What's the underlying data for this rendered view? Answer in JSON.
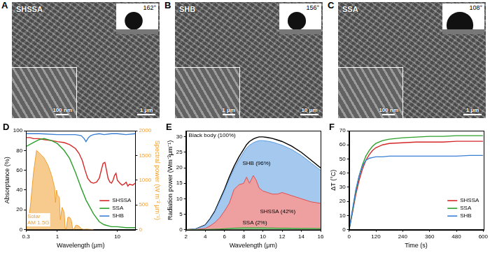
{
  "images": [
    {
      "letter": "A",
      "label": "SHSSA",
      "contact_angle": "162°",
      "inset_scale": "100 nm",
      "scale": "1 μm"
    },
    {
      "letter": "B",
      "label": "SHB",
      "contact_angle": "156°",
      "inset_scale": "1 μm",
      "scale": "10 μm"
    },
    {
      "letter": "C",
      "label": "SSA",
      "contact_angle": "108°",
      "inset_scale": "100 nm",
      "scale": "1 μm"
    }
  ],
  "chart_data": [
    {
      "letter": "D",
      "type": "line",
      "x_label": "Wavelength (μm)",
      "y_label": "Absorptance (%)",
      "y2_label": "Spectral power (W m⁻² μm⁻¹)",
      "log": "x",
      "grid": false,
      "legend": "lower right",
      "xlim": [
        0.3,
        20
      ],
      "xticks": [
        0.3,
        1,
        10
      ],
      "ylim": [
        0,
        100
      ],
      "yticks": [
        0,
        20,
        40,
        60,
        80,
        100
      ],
      "y2lim": [
        0,
        2000
      ],
      "y2ticks": [
        0,
        500,
        1000,
        1500,
        2000
      ],
      "series": [
        {
          "name": "SHSSA",
          "color": "#d62728",
          "x": [
            0.3,
            0.35,
            0.4,
            0.5,
            0.6,
            0.8,
            1.0,
            1.3,
            1.6,
            2.0,
            2.3,
            2.6,
            2.9,
            3.2,
            3.6,
            4.0,
            4.5,
            5.0,
            5.5,
            5.8,
            6.2,
            6.6,
            7.0,
            7.5,
            8.0,
            8.5,
            9.0,
            9.5,
            10,
            11,
            12,
            13,
            14,
            15,
            16,
            18,
            20
          ],
          "values": [
            93,
            93,
            92,
            92,
            91,
            90,
            89,
            88,
            86,
            82,
            77,
            70,
            60,
            52,
            48,
            47,
            48,
            52,
            62,
            67,
            68,
            60,
            52,
            48,
            47,
            50,
            55,
            57,
            50,
            47,
            45,
            46,
            48,
            44,
            46,
            45,
            47
          ]
        },
        {
          "name": "SSA",
          "color": "#2ca02c",
          "x": [
            0.3,
            0.4,
            0.5,
            0.6,
            0.8,
            1.0,
            1.3,
            1.6,
            2.0,
            2.5,
            3.0,
            4.0,
            5.0,
            6.0,
            8.0,
            10,
            14,
            20
          ],
          "values": [
            84,
            88,
            91,
            92,
            90,
            87,
            80,
            72,
            58,
            42,
            30,
            16,
            8,
            5,
            3,
            3,
            2,
            2
          ]
        },
        {
          "name": "SHB",
          "color": "#3a7fd5",
          "x": [
            0.3,
            0.5,
            1.0,
            1.5,
            2.0,
            2.5,
            2.8,
            3.0,
            3.3,
            3.6,
            4.0,
            5.0,
            6.0,
            8.0,
            10,
            14,
            20
          ],
          "values": [
            97,
            97,
            96,
            96,
            96,
            95,
            92,
            89,
            93,
            95,
            96,
            97,
            96,
            97,
            97,
            96,
            97
          ]
        },
        {
          "name": "Solar AM 1.5G",
          "color": "#f0a030",
          "type": "area",
          "axis": "y2",
          "x": [
            0.3,
            0.33,
            0.36,
            0.4,
            0.45,
            0.5,
            0.55,
            0.6,
            0.7,
            0.8,
            0.9,
            0.93,
            0.97,
            1.0,
            1.08,
            1.12,
            1.2,
            1.3,
            1.35,
            1.4,
            1.5,
            1.6,
            1.7,
            1.8,
            1.9,
            2.0,
            2.1,
            2.3,
            2.5,
            2.7,
            3.0,
            4.0
          ],
          "values": [
            0,
            150,
            550,
            1150,
            1600,
            1550,
            1500,
            1450,
            1300,
            1100,
            850,
            550,
            800,
            700,
            650,
            200,
            450,
            350,
            20,
            5,
            250,
            250,
            200,
            20,
            5,
            80,
            90,
            70,
            20,
            5,
            10,
            0
          ]
        }
      ]
    },
    {
      "letter": "E",
      "type": "line",
      "x_label": "Wavelength (μm)",
      "y_label": "Radiation power (Wm⁻²μm⁻¹)",
      "grid": false,
      "xlim": [
        2,
        16
      ],
      "xticks": [
        2,
        4,
        6,
        8,
        10,
        12,
        14,
        16
      ],
      "ylim": [
        0,
        32
      ],
      "yticks": [
        0,
        5,
        10,
        15,
        20,
        25,
        30
      ],
      "x": [
        2,
        3,
        4,
        4.5,
        5,
        5.5,
        6,
        6.5,
        7,
        7.5,
        8,
        8.3,
        8.6,
        9,
        9.3,
        9.6,
        10,
        10.5,
        11,
        11.5,
        12,
        13,
        14,
        15,
        16
      ],
      "series": [
        {
          "name": "Black body (100%)",
          "color": "#000000",
          "type": "line",
          "values": [
            0,
            0.2,
            1.5,
            3.5,
            6,
            9.5,
            13,
            17,
            20.5,
            23.5,
            26,
            27.5,
            28.5,
            29.3,
            29.7,
            30,
            30,
            29.8,
            29.5,
            29,
            28.5,
            27,
            25,
            22.5,
            20
          ]
        },
        {
          "name": "SHB (96%)",
          "color": "#5b9be0",
          "type": "area",
          "values": [
            0,
            0.2,
            1.4,
            3.3,
            5.7,
            9.1,
            12.5,
            16.3,
            19.6,
            22.5,
            25,
            26.4,
            27.3,
            28.1,
            28.5,
            28.8,
            28.8,
            28.6,
            28.3,
            27.8,
            27.3,
            25.9,
            24,
            21.6,
            19.2
          ]
        },
        {
          "name": "SHSSA (42%)",
          "color": "#e05050",
          "type": "area",
          "values": [
            0,
            0.05,
            0.4,
            1.2,
            2.3,
            3.8,
            6,
            8.5,
            13,
            14.5,
            15,
            17,
            15,
            17.5,
            16,
            13.5,
            12.5,
            12,
            11.5,
            11.5,
            12,
            11,
            10,
            9,
            8.5
          ]
        },
        {
          "name": "SSA (2%)",
          "color": "#2ca02c",
          "type": "area",
          "values": [
            0,
            0,
            0.05,
            0.1,
            0.15,
            0.2,
            0.3,
            0.4,
            0.5,
            0.55,
            0.6,
            0.6,
            0.6,
            0.6,
            0.6,
            0.6,
            0.6,
            0.55,
            0.55,
            0.5,
            0.5,
            0.45,
            0.4,
            0.4,
            0.35
          ]
        }
      ]
    },
    {
      "letter": "F",
      "type": "line",
      "x_label": "Time (s)",
      "y_label": "ΔT (°C)",
      "grid": false,
      "legend": "lower right",
      "xlim": [
        0,
        600
      ],
      "xticks": [
        0,
        120,
        240,
        360,
        480,
        600
      ],
      "ylim": [
        0,
        70
      ],
      "yticks": [
        0,
        10,
        20,
        30,
        40,
        50,
        60,
        70
      ],
      "x": [
        0,
        15,
        30,
        45,
        60,
        75,
        90,
        105,
        120,
        150,
        180,
        240,
        300,
        360,
        420,
        480,
        540,
        600
      ],
      "series": [
        {
          "name": "SHSSA",
          "color": "#d62728",
          "values": [
            0,
            12,
            25,
            35,
            43,
            49,
            53,
            56,
            58,
            60,
            61,
            61.5,
            62,
            62,
            62,
            62.5,
            62.5,
            62.5
          ]
        },
        {
          "name": "SSA",
          "color": "#2ca02c",
          "values": [
            0,
            13,
            27,
            38,
            46,
            52,
            56,
            59,
            61,
            63,
            64,
            65,
            65.5,
            66,
            66,
            66.5,
            66.5,
            66.5
          ]
        },
        {
          "name": "SHB",
          "color": "#3a7fd5",
          "values": [
            0,
            14,
            28,
            38,
            45,
            49,
            50.5,
            51,
            51.5,
            51.5,
            52,
            52,
            52,
            52,
            52,
            52,
            52.5,
            52.5
          ]
        }
      ]
    }
  ]
}
